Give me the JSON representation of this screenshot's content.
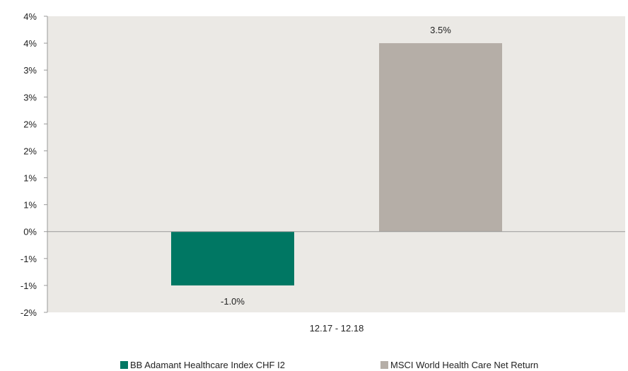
{
  "chart_data": {
    "type": "bar",
    "categories": [
      "12.17 - 12.18"
    ],
    "series": [
      {
        "name": "BB Adamant Healthcare Index CHF I2",
        "values": [
          -1.0
        ],
        "label": "-1.0%",
        "color": "#007763"
      },
      {
        "name": "MSCI World Health Care Net Return",
        "values": [
          3.5
        ],
        "label": "3.5%",
        "color": "#b5aea7"
      }
    ],
    "y_ticks": [
      {
        "value": 4.0,
        "label": "4%"
      },
      {
        "value": 3.5,
        "label": "4%"
      },
      {
        "value": 3.0,
        "label": "3%"
      },
      {
        "value": 2.5,
        "label": "3%"
      },
      {
        "value": 2.0,
        "label": "2%"
      },
      {
        "value": 1.5,
        "label": "2%"
      },
      {
        "value": 1.0,
        "label": "1%"
      },
      {
        "value": 0.5,
        "label": "1%"
      },
      {
        "value": 0.0,
        "label": "0%"
      },
      {
        "value": -0.5,
        "label": "-1%"
      },
      {
        "value": -1.0,
        "label": "-1%"
      },
      {
        "value": -1.5,
        "label": "-2%"
      }
    ],
    "ylim": [
      -1.5,
      4.0
    ],
    "title": "",
    "xlabel": "",
    "ylabel": "",
    "grid": false,
    "legend_position": "bottom",
    "plot_background": "#ebe9e5",
    "zero_line_color": "#999999"
  }
}
